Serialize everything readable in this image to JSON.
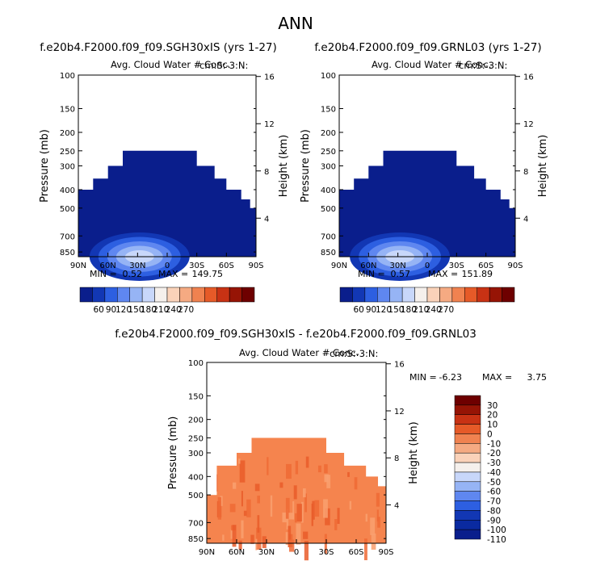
{
  "main_title": "ANN",
  "chart_data": [
    {
      "type": "contour",
      "title": "f.e20b4.F2000.f09_f09.SGH30xIS (yrs 1-27)",
      "subtitle": "Avg. Cloud Water # Conc.",
      "units_label": "cm:S:-3:N:",
      "xlabel": "",
      "ylabel": "Pressure (mb)",
      "y2label": "Height (km)",
      "x_ticks": [
        "90N",
        "60N",
        "30N",
        "0",
        "30S",
        "60S",
        "90S"
      ],
      "y_ticks": [
        "100",
        "150",
        "200",
        "250",
        "300",
        "400",
        "500",
        "700",
        "850"
      ],
      "y_tick_values": [
        100,
        150,
        200,
        250,
        300,
        400,
        500,
        700,
        850
      ],
      "y2_ticks": [
        "16",
        "12",
        "8",
        "4"
      ],
      "y2_tick_values": [
        16,
        12,
        8,
        4
      ],
      "ylim": [
        100,
        1000
      ],
      "xlim": [
        -90,
        90
      ],
      "min_label": "MIN =",
      "min_value": "0.52",
      "max_label": "MAX =",
      "max_value": "149.75",
      "top_pressure_profile": [
        [
          -90,
          400
        ],
        [
          -75,
          350
        ],
        [
          -60,
          300
        ],
        [
          -45,
          250
        ],
        [
          15,
          250
        ],
        [
          30,
          300
        ],
        [
          48,
          350
        ],
        [
          60,
          400
        ],
        [
          75,
          450
        ],
        [
          84,
          500
        ],
        [
          90,
          550
        ]
      ],
      "colorbar": {
        "labels": [
          "60",
          "90",
          "120",
          "150",
          "180",
          "210",
          "240",
          "270"
        ],
        "colors": [
          "#0a1e8c",
          "#1237b4",
          "#2d5fe1",
          "#5f87f0",
          "#96b4f5",
          "#c8d7fa",
          "#f5f0ec",
          "#fad2b9",
          "#f5aa82",
          "#f08250",
          "#e65a28",
          "#c83214",
          "#961405",
          "#6e0000"
        ]
      }
    },
    {
      "type": "contour",
      "title": "f.e20b4.F2000.f09_f09.GRNL03 (yrs 1-27)",
      "subtitle": "Avg. Cloud Water # Conc.",
      "units_label": "cm:S:-3:N:",
      "xlabel": "",
      "ylabel": "Pressure (mb)",
      "y2label": "Height (km)",
      "x_ticks": [
        "90N",
        "60N",
        "30N",
        "0",
        "30S",
        "60S",
        "90S"
      ],
      "y_ticks": [
        "100",
        "150",
        "200",
        "250",
        "300",
        "400",
        "500",
        "700",
        "850"
      ],
      "y_tick_values": [
        100,
        150,
        200,
        250,
        300,
        400,
        500,
        700,
        850
      ],
      "y2_ticks": [
        "16",
        "12",
        "8",
        "4"
      ],
      "y2_tick_values": [
        16,
        12,
        8,
        4
      ],
      "ylim": [
        100,
        1000
      ],
      "xlim": [
        -90,
        90
      ],
      "min_label": "MIN =",
      "min_value": "0.57",
      "max_label": "MAX =",
      "max_value": "151.89",
      "top_pressure_profile": [
        [
          -90,
          400
        ],
        [
          -75,
          350
        ],
        [
          -60,
          300
        ],
        [
          -45,
          250
        ],
        [
          15,
          250
        ],
        [
          30,
          300
        ],
        [
          48,
          350
        ],
        [
          60,
          400
        ],
        [
          75,
          450
        ],
        [
          84,
          500
        ],
        [
          90,
          550
        ]
      ],
      "colorbar": {
        "labels": [
          "60",
          "90",
          "120",
          "150",
          "180",
          "210",
          "240",
          "270"
        ],
        "colors": [
          "#0a1e8c",
          "#1237b4",
          "#2d5fe1",
          "#5f87f0",
          "#96b4f5",
          "#c8d7fa",
          "#f5f0ec",
          "#fad2b9",
          "#f5aa82",
          "#f08250",
          "#e65a28",
          "#c83214",
          "#961405",
          "#6e0000"
        ]
      }
    },
    {
      "type": "contour",
      "title": "f.e20b4.F2000.f09_f09.SGH30xIS - f.e20b4.F2000.f09_f09.GRNL03",
      "subtitle": "Avg. Cloud Water # Conc.",
      "units_label": "cm:S:-3:N:",
      "xlabel": "",
      "ylabel": "Pressure (mb)",
      "y2label": "Height (km)",
      "x_ticks": [
        "90N",
        "60N",
        "30N",
        "0",
        "30S",
        "60S",
        "90S"
      ],
      "y_ticks": [
        "100",
        "150",
        "200",
        "250",
        "300",
        "400",
        "500",
        "700",
        "850"
      ],
      "y_tick_values": [
        100,
        150,
        200,
        250,
        300,
        400,
        500,
        700,
        850
      ],
      "y2_ticks": [
        "16",
        "12",
        "8",
        "4"
      ],
      "y2_tick_values": [
        16,
        12,
        8,
        4
      ],
      "ylim": [
        100,
        1000
      ],
      "xlim": [
        -90,
        90
      ],
      "min_label": "MIN =",
      "min_value": "-6.23",
      "max_label": "MAX =",
      "max_value": "3.75",
      "top_pressure_profile": [
        [
          -90,
          500
        ],
        [
          -80,
          350
        ],
        [
          -60,
          300
        ],
        [
          -45,
          250
        ],
        [
          15,
          250
        ],
        [
          30,
          300
        ],
        [
          48,
          350
        ],
        [
          70,
          400
        ],
        [
          82,
          450
        ],
        [
          90,
          500
        ]
      ],
      "colorbar": {
        "labels": [
          "30",
          "20",
          "10",
          "0",
          "-10",
          "-20",
          "-30",
          "-40",
          "-50",
          "-60",
          "-70",
          "-80",
          "-90",
          "-100",
          "-110"
        ],
        "colors": [
          "#6e0000",
          "#961405",
          "#c83214",
          "#e65a28",
          "#f08250",
          "#f5aa82",
          "#fad2b9",
          "#f5f0ec",
          "#c8d7fa",
          "#96b4f5",
          "#5f87f0",
          "#2d5fe1",
          "#1237b4",
          "#0a2aa0",
          "#0a1e8c"
        ]
      }
    }
  ]
}
